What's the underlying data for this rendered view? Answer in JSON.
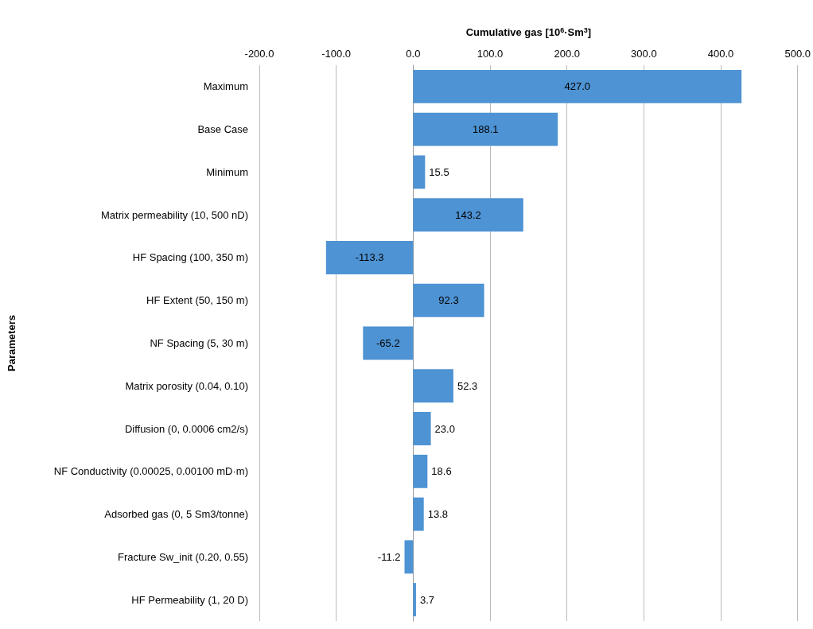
{
  "chart_data": {
    "type": "bar",
    "orientation": "horizontal",
    "xlabel": "Cumulative gas [10$^{6}$·Sm$^{3}$]",
    "ylabel": "Parameters",
    "categories": [
      "Maximum",
      "Base Case",
      "Minimum",
      "Matrix permeability (10, 500 nD)",
      "HF Spacing (100, 350 m)",
      "HF Extent (50, 150 m)",
      "NF Spacing (5, 30 m)",
      "Matrix porosity (0.04, 0.10)",
      "Diffusion (0, 0.0006 cm2/s)",
      "NF Conductivity (0.00025, 0.00100 mD·m)",
      "Adsorbed gas (0, 5 Sm3/tonne)",
      "Fracture Sw_init (0.20, 0.55)",
      "HF Permeability (1, 20 D)"
    ],
    "values": [
      427.0,
      188.1,
      15.5,
      143.2,
      -113.3,
      92.3,
      -65.2,
      52.3,
      23.0,
      18.6,
      13.8,
      -11.2,
      3.7
    ],
    "value_labels": [
      "427.0",
      "188.1",
      "15.5",
      "143.2",
      "-113.3",
      "92.3",
      "-65.2",
      "52.3",
      "23.0",
      "18.6",
      "13.8",
      "-11.2",
      "3.7"
    ],
    "color": "#4e93d3",
    "xlim": [
      -200,
      500
    ],
    "xticks": [
      {
        "value": -200,
        "label": "-200.0"
      },
      {
        "value": -100,
        "label": "-100.0"
      },
      {
        "value": 0,
        "label": "0.0"
      },
      {
        "value": 100,
        "label": "100.0"
      },
      {
        "value": 200,
        "label": "200.0"
      },
      {
        "value": 300,
        "label": "300.0"
      },
      {
        "value": 400,
        "label": "400.0"
      },
      {
        "value": 500,
        "label": "500.0"
      }
    ],
    "grid": "x"
  }
}
